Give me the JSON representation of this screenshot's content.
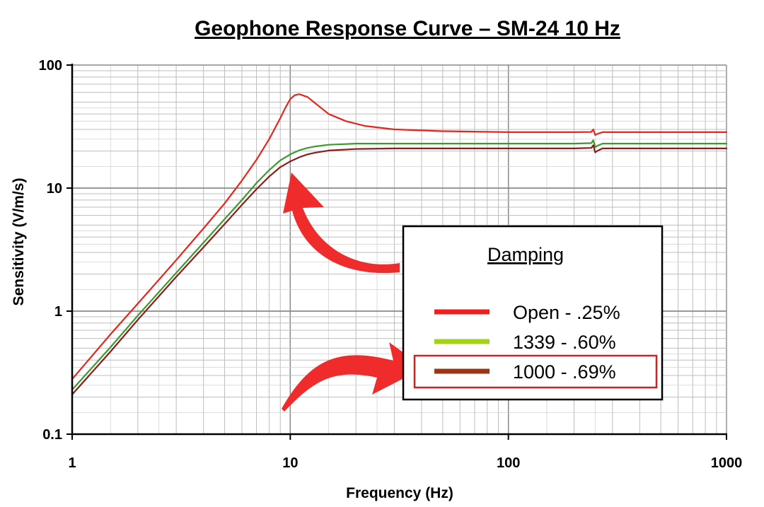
{
  "chart_data": {
    "type": "line",
    "title": "Geophone Response Curve – SM-24 10 Hz",
    "xlabel": "Frequency (Hz)",
    "ylabel": "Sensitivity (V/m/s)",
    "x_scale": "log",
    "y_scale": "log",
    "xlim": [
      1,
      1000
    ],
    "ylim": [
      0.1,
      100
    ],
    "x_ticks": [
      {
        "value": 1,
        "label": "1"
      },
      {
        "value": 10,
        "label": "10"
      },
      {
        "value": 100,
        "label": "100"
      },
      {
        "value": 1000,
        "label": "1000"
      }
    ],
    "y_ticks": [
      {
        "value": 0.1,
        "label": "0.1"
      },
      {
        "value": 1,
        "label": "1"
      },
      {
        "value": 10,
        "label": "10"
      },
      {
        "value": 100,
        "label": "100"
      }
    ],
    "grid": true,
    "legend": {
      "title": "Damping",
      "placement": "lower-right",
      "highlighted_entry": 2
    },
    "series": [
      {
        "name": "Open - .25%",
        "color": "#e8251c",
        "points": [
          [
            1,
            0.28
          ],
          [
            1.5,
            0.65
          ],
          [
            2,
            1.15
          ],
          [
            3,
            2.6
          ],
          [
            4,
            4.7
          ],
          [
            5,
            7.5
          ],
          [
            6,
            11.5
          ],
          [
            7,
            17
          ],
          [
            8,
            25
          ],
          [
            9,
            37
          ],
          [
            9.5,
            45
          ],
          [
            10,
            53
          ],
          [
            10.5,
            57
          ],
          [
            11,
            58
          ],
          [
            12,
            55
          ],
          [
            13,
            49
          ],
          [
            15,
            40
          ],
          [
            18,
            35
          ],
          [
            22,
            32
          ],
          [
            30,
            30
          ],
          [
            50,
            29
          ],
          [
            100,
            28.5
          ],
          [
            200,
            28.5
          ],
          [
            240,
            28.6
          ],
          [
            245,
            30
          ],
          [
            250,
            27
          ],
          [
            255,
            27.5
          ],
          [
            270,
            28.5
          ],
          [
            300,
            28.5
          ],
          [
            500,
            28.5
          ],
          [
            1000,
            28.5
          ]
        ]
      },
      {
        "name": "1339  - .60%",
        "color": "#3c9a2c",
        "points": [
          [
            1,
            0.23
          ],
          [
            1.5,
            0.51
          ],
          [
            2,
            0.92
          ],
          [
            3,
            2.05
          ],
          [
            4,
            3.6
          ],
          [
            5,
            5.6
          ],
          [
            6,
            8
          ],
          [
            7,
            11
          ],
          [
            8,
            14
          ],
          [
            9,
            16.8
          ],
          [
            10,
            18.8
          ],
          [
            11,
            20.3
          ],
          [
            12,
            21.2
          ],
          [
            13,
            21.8
          ],
          [
            15,
            22.5
          ],
          [
            20,
            23
          ],
          [
            30,
            23
          ],
          [
            50,
            23
          ],
          [
            100,
            23
          ],
          [
            200,
            23
          ],
          [
            240,
            23.2
          ],
          [
            245,
            24.5
          ],
          [
            250,
            21.5
          ],
          [
            255,
            22
          ],
          [
            270,
            23
          ],
          [
            300,
            23
          ],
          [
            500,
            23
          ],
          [
            1000,
            23
          ]
        ]
      },
      {
        "name": "1000  - .69%",
        "color": "#8b1c1c",
        "points": [
          [
            1,
            0.21
          ],
          [
            1.5,
            0.47
          ],
          [
            2,
            0.85
          ],
          [
            3,
            1.9
          ],
          [
            4,
            3.3
          ],
          [
            5,
            5.1
          ],
          [
            6,
            7.3
          ],
          [
            7,
            9.8
          ],
          [
            8,
            12.4
          ],
          [
            9,
            14.8
          ],
          [
            10,
            16.5
          ],
          [
            11,
            17.8
          ],
          [
            12,
            18.8
          ],
          [
            13,
            19.4
          ],
          [
            15,
            20.2
          ],
          [
            20,
            20.8
          ],
          [
            30,
            21
          ],
          [
            50,
            21
          ],
          [
            100,
            21
          ],
          [
            200,
            21
          ],
          [
            240,
            21.2
          ],
          [
            245,
            22.3
          ],
          [
            250,
            19.5
          ],
          [
            255,
            20
          ],
          [
            270,
            21
          ],
          [
            300,
            21
          ],
          [
            500,
            21
          ],
          [
            1000,
            21
          ]
        ]
      }
    ]
  },
  "legend_swatches": [
    "#f01e1e",
    "#a6d11a",
    "#9a3412"
  ],
  "annotation_color": "#ef2b2b",
  "highlight_box_color": "#d42020"
}
